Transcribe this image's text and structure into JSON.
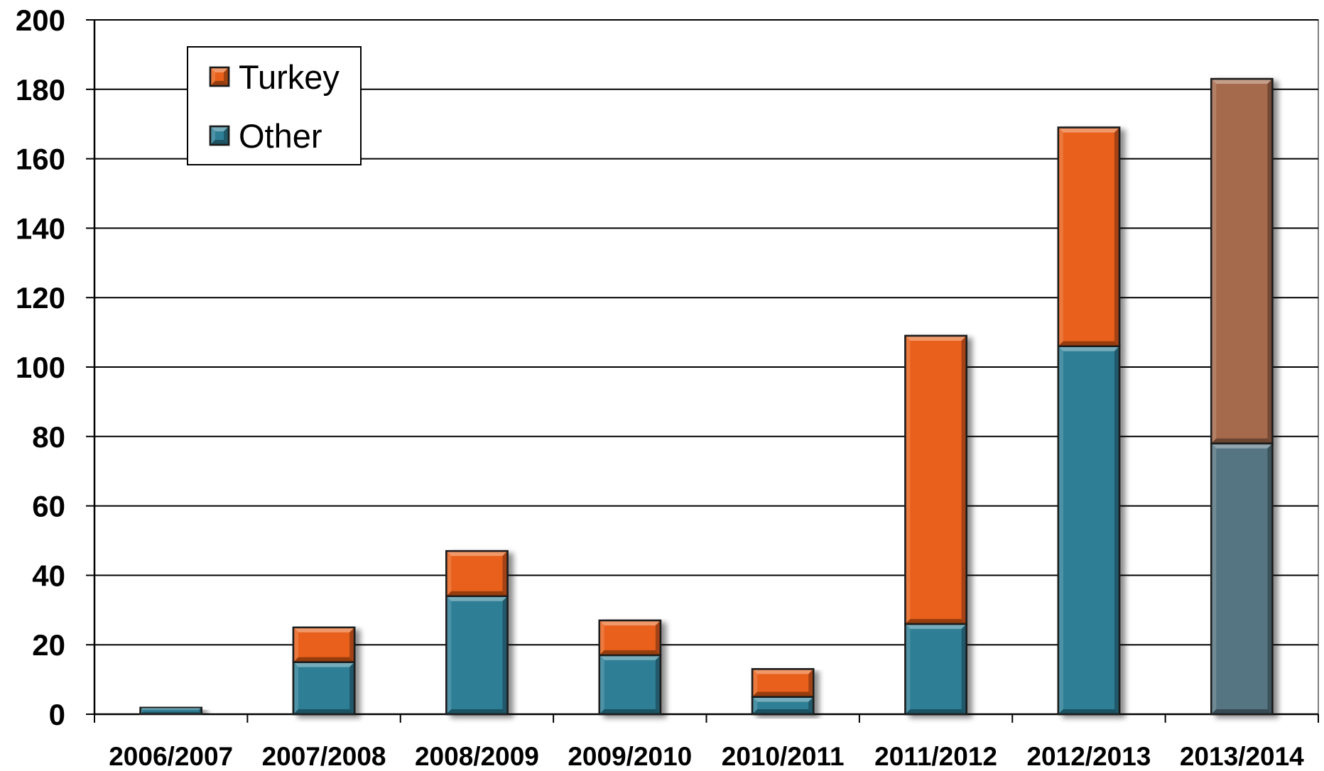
{
  "chart_data": {
    "type": "bar",
    "stacked": true,
    "categories": [
      "2006/2007",
      "2007/2008",
      "2008/2009",
      "2009/2010",
      "2010/2011",
      "2011/2012",
      "2012/2013",
      "2013/2014"
    ],
    "series": [
      {
        "name": "Other",
        "values": [
          2,
          15,
          34,
          17,
          5,
          26,
          106,
          78
        ],
        "color": "#2e7f96"
      },
      {
        "name": "Turkey",
        "values": [
          0,
          10,
          13,
          10,
          8,
          83,
          63,
          105
        ],
        "color": "#e8601a"
      }
    ],
    "highlight_last_category_colors": {
      "Other": "#567582",
      "Turkey": "#a5694b"
    },
    "yticks": [
      "0",
      "20",
      "40",
      "60",
      "80",
      "100",
      "120",
      "140",
      "160",
      "180",
      "200"
    ],
    "ylim": [
      0,
      200
    ],
    "grid": true,
    "legend_position": "top-left",
    "legend_order": [
      "Turkey",
      "Other"
    ],
    "title": "",
    "xlabel": "",
    "ylabel": ""
  }
}
